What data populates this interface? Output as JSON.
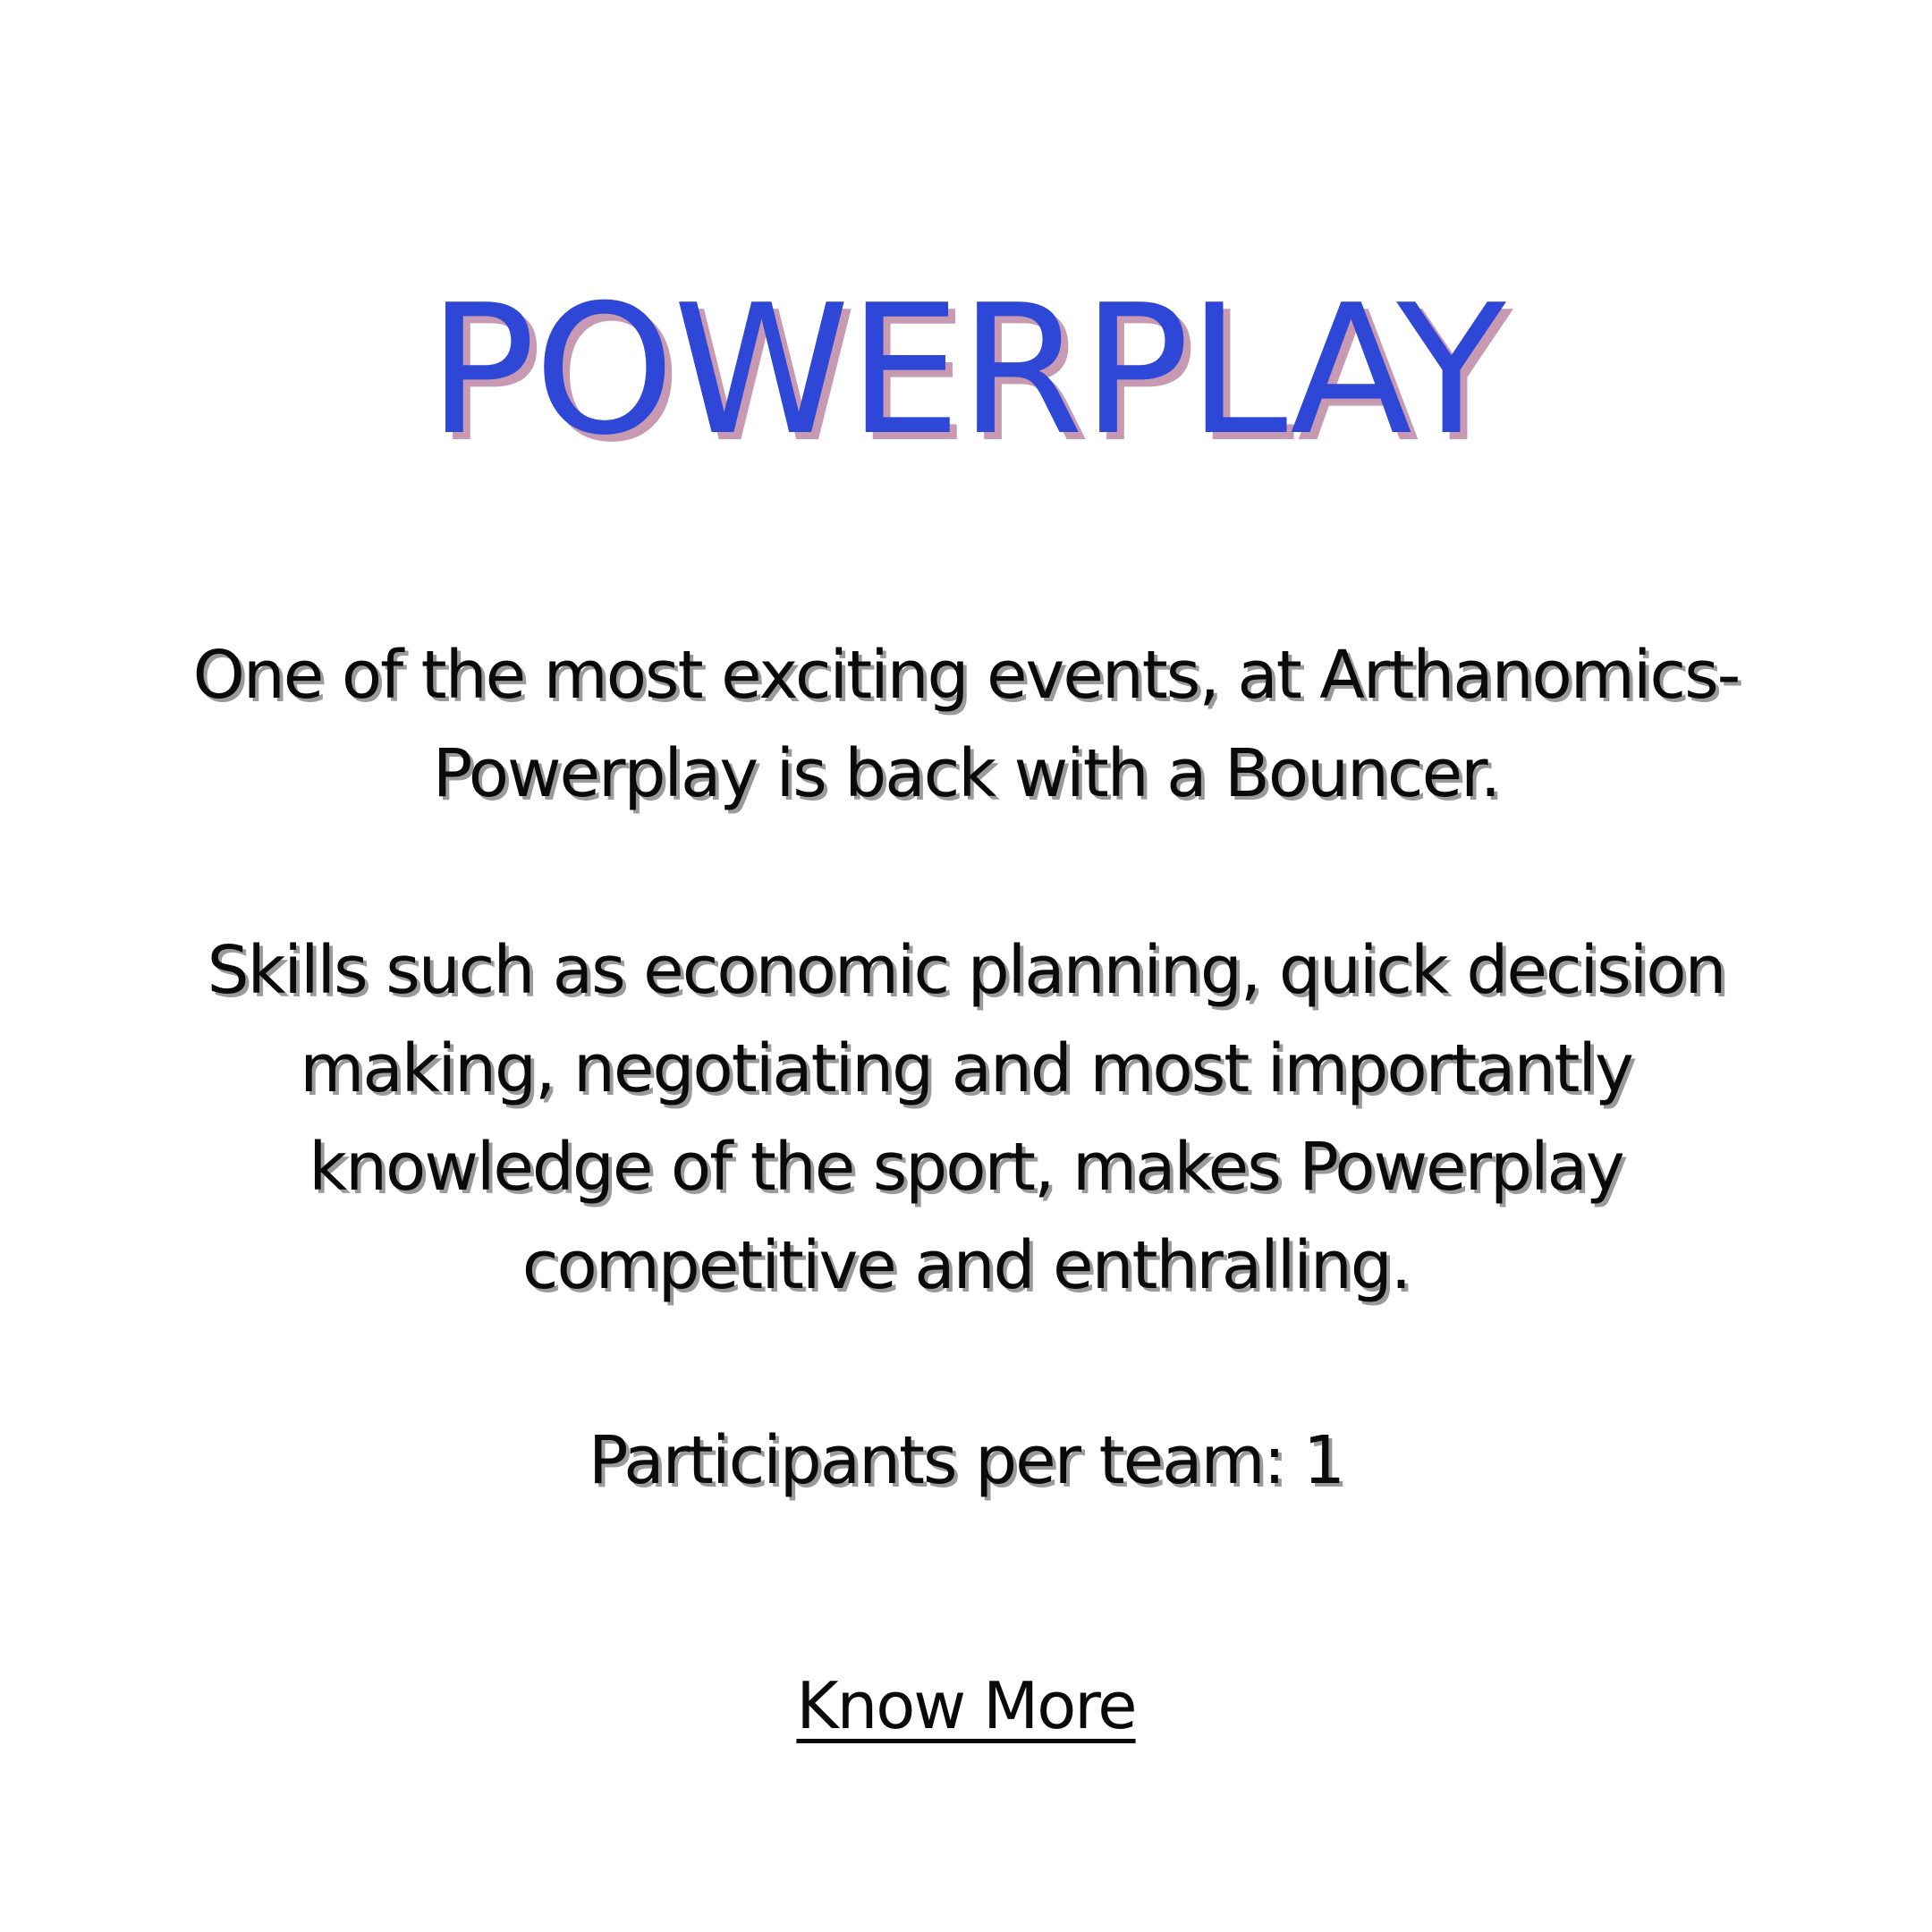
{
  "colors": {
    "background": "#ffffff",
    "title": "#2e47d6",
    "title_shadow": "#c79ab2",
    "text": "#0a0a0a"
  },
  "event": {
    "title": "POWERPLAY",
    "intro_line_1": "One of the most exciting events, at Arthanomics-",
    "intro_line_2": "Powerplay is back with a Bouncer.",
    "skills_line_1": "Skills such as economic planning, quick decision",
    "skills_line_2": "making, negotiating and most importantly",
    "skills_line_3": "knowledge of the sport, makes Powerplay",
    "skills_line_4": "competitive and enthralling.",
    "participants": "Participants per team: 1",
    "cta_label": "Know More"
  }
}
